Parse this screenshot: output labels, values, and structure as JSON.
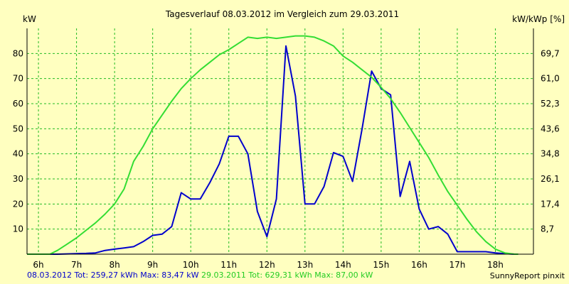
{
  "chart_data": {
    "type": "line",
    "title": "Tagesverlauf 08.03.2012 im Vergleich zum 29.03.2011",
    "ylabel_left": "kW",
    "ylabel_right": "kW/kWp [%]",
    "x_range": [
      5.7,
      19.0
    ],
    "ylim": [
      0,
      90
    ],
    "grid": true,
    "x_ticks": [
      {
        "x": 6,
        "label": "6h"
      },
      {
        "x": 7,
        "label": "7h"
      },
      {
        "x": 8,
        "label": "8h"
      },
      {
        "x": 9,
        "label": "9h"
      },
      {
        "x": 10,
        "label": "10h"
      },
      {
        "x": 11,
        "label": "11h"
      },
      {
        "x": 12,
        "label": "12h"
      },
      {
        "x": 13,
        "label": "13h"
      },
      {
        "x": 14,
        "label": "14h"
      },
      {
        "x": 15,
        "label": "15h"
      },
      {
        "x": 16,
        "label": "16h"
      },
      {
        "x": 17,
        "label": "17h"
      },
      {
        "x": 18,
        "label": "18h"
      }
    ],
    "y_ticks_left": [
      {
        "y": 10,
        "label": "10"
      },
      {
        "y": 20,
        "label": "20"
      },
      {
        "y": 30,
        "label": "30"
      },
      {
        "y": 40,
        "label": "40"
      },
      {
        "y": 50,
        "label": "50"
      },
      {
        "y": 60,
        "label": "60"
      },
      {
        "y": 70,
        "label": "70"
      },
      {
        "y": 80,
        "label": "80"
      }
    ],
    "y_ticks_right": [
      {
        "y": 10,
        "label": "8,7"
      },
      {
        "y": 20,
        "label": "17,4"
      },
      {
        "y": 30,
        "label": "26,1"
      },
      {
        "y": 40,
        "label": "34,8"
      },
      {
        "y": 50,
        "label": "43,6"
      },
      {
        "y": 60,
        "label": "52,3"
      },
      {
        "y": 70,
        "label": "61,0"
      },
      {
        "y": 80,
        "label": "69,7"
      }
    ],
    "series": [
      {
        "name": "08.03.2012",
        "color": "#0000cc",
        "x": [
          5.7,
          6.5,
          7.0,
          7.25,
          7.5,
          7.75,
          8.0,
          8.25,
          8.5,
          8.75,
          9.0,
          9.25,
          9.5,
          9.75,
          10.0,
          10.25,
          10.5,
          10.75,
          11.0,
          11.25,
          11.5,
          11.75,
          12.0,
          12.25,
          12.5,
          12.75,
          13.0,
          13.25,
          13.5,
          13.75,
          14.0,
          14.25,
          14.5,
          14.75,
          15.0,
          15.25,
          15.5,
          15.75,
          16.0,
          16.25,
          16.5,
          16.75,
          17.0,
          17.25,
          17.5,
          17.75,
          18.0,
          18.25,
          18.5
        ],
        "y": [
          0,
          0,
          0.2,
          0.3,
          0.5,
          1.5,
          2.0,
          2.5,
          3.0,
          5.0,
          7.5,
          8.0,
          11.0,
          24.5,
          22.0,
          22.0,
          28.5,
          36.0,
          47.0,
          47.0,
          40.0,
          17.0,
          7.0,
          22.0,
          83.0,
          63.0,
          20.0,
          20.0,
          27.0,
          40.5,
          39.0,
          29.0,
          50.0,
          73.0,
          66.0,
          63.5,
          23.0,
          37.0,
          18.0,
          10.0,
          11.0,
          8.0,
          1.0,
          1.0,
          1.0,
          1.0,
          0.5,
          0.2,
          0
        ]
      },
      {
        "name": "29.03.2011",
        "color": "#33dd33",
        "x": [
          5.7,
          6.3,
          6.5,
          6.75,
          7.0,
          7.25,
          7.5,
          7.75,
          8.0,
          8.25,
          8.5,
          8.75,
          9.0,
          9.25,
          9.5,
          9.75,
          10.0,
          10.25,
          10.5,
          10.75,
          11.0,
          11.25,
          11.5,
          11.75,
          12.0,
          12.25,
          12.5,
          12.75,
          13.0,
          13.25,
          13.5,
          13.75,
          14.0,
          14.25,
          14.5,
          14.75,
          15.0,
          15.25,
          15.5,
          15.75,
          16.0,
          16.25,
          16.5,
          16.75,
          17.0,
          17.25,
          17.5,
          17.75,
          18.0,
          18.25,
          18.5,
          18.6
        ],
        "y": [
          0,
          0,
          1.5,
          4.0,
          6.5,
          9.5,
          12.5,
          16.0,
          20.0,
          26.0,
          37.0,
          43.0,
          50.0,
          55.5,
          61.0,
          66.0,
          70.0,
          73.5,
          76.5,
          79.5,
          81.5,
          84.0,
          86.5,
          86.0,
          86.5,
          86.0,
          86.5,
          87.0,
          87.0,
          86.5,
          85.0,
          83.0,
          79.0,
          76.5,
          73.5,
          70.5,
          66.5,
          62.0,
          56.5,
          50.5,
          44.5,
          38.5,
          31.5,
          25.0,
          19.5,
          14.0,
          9.0,
          5.0,
          2.0,
          0.5,
          0,
          0
        ]
      }
    ]
  },
  "footer": {
    "legend1": "08.03.2012 Tot: 259,27 kWh Max: 83,47 kW",
    "legend2": "29.03.2011 Tot: 629,31 kWh Max: 87,00 kW",
    "credit": "SunnyReport pinxit"
  }
}
